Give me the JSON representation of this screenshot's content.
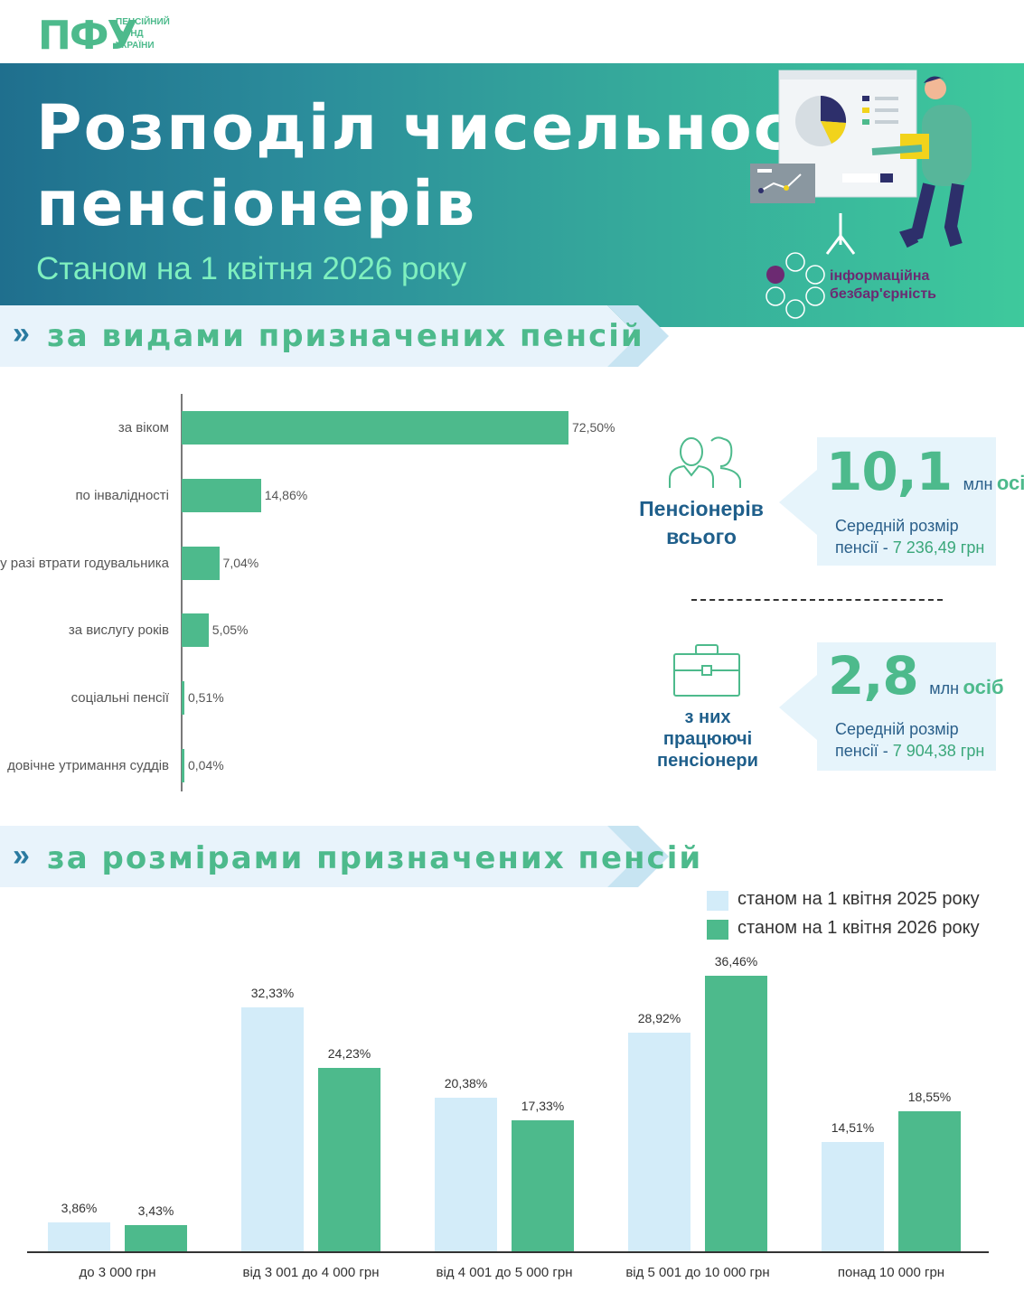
{
  "logo": {
    "mark": "ПФУ",
    "line1": "ПЕНСІЙНИЙ",
    "line2": "ФОНД",
    "line3": "УКРАЇНИ"
  },
  "hero": {
    "title_line1": "Розподіл чисельності",
    "title_line2": "пенсіонерів",
    "subtitle": "Станом на 1 квітня 2026 року",
    "badge_line1": "інформаційна",
    "badge_line2": "безбар'єрність"
  },
  "sections": {
    "by_type": "за видами призначених пенсій",
    "by_size": "за розмірами призначених пенсій"
  },
  "stats": {
    "total": {
      "label_line1": "Пенсіонерів",
      "label_line2": "всього",
      "number": "10,1",
      "unit_mln": "млн",
      "unit_persons": "осіб",
      "desc_line1": "Середній розмір",
      "desc_prefix": "пенсії - ",
      "desc_amount": "7 236,49 грн"
    },
    "working": {
      "label_line1": "з них",
      "label_line2": "працюючі",
      "label_line3": "пенсіонери",
      "number": "2,8",
      "unit_mln": "млн",
      "unit_persons": "осіб",
      "desc_line1": "Середній розмір",
      "desc_prefix": "пенсії - ",
      "desc_amount": "7 904,38 грн"
    }
  },
  "chart_data": [
    {
      "type": "bar",
      "orientation": "horizontal",
      "title": "за видами призначених пенсій",
      "categories": [
        "за віком",
        "по інвалідності",
        "у разі втрати годувальника",
        "за вислугу років",
        "соціальні пенсії",
        "довічне утримання суддів"
      ],
      "values": [
        72.5,
        14.86,
        7.04,
        5.05,
        0.51,
        0.04
      ],
      "value_labels": [
        "72,50%",
        "14,86%",
        "7,04%",
        "5,05%",
        "0,51%",
        "0,04%"
      ],
      "xlim": [
        0,
        100
      ],
      "grid": false,
      "color": "#4dba8c"
    },
    {
      "type": "bar",
      "title": "за розмірами призначених пенсій",
      "categories": [
        "до 3 000 грн",
        "від 3 001 до 4 000 грн",
        "від 4 001 до 5 000 грн",
        "від 5 001 до 10 000 грн",
        "понад 10 000 грн"
      ],
      "series": [
        {
          "name": "станом на 1 квітня 2025 року",
          "color": "#d3ecf9",
          "values": [
            3.86,
            32.33,
            20.38,
            28.92,
            14.51
          ],
          "value_labels": [
            "3,86%",
            "32,33%",
            "20,38%",
            "28,92%",
            "14,51%"
          ]
        },
        {
          "name": "станом на 1 квітня 2026 року",
          "color": "#4dba8c",
          "values": [
            3.43,
            24.23,
            17.33,
            36.46,
            18.55
          ],
          "value_labels": [
            "3,43%",
            "24,23%",
            "17,33%",
            "36,46%",
            "18,55%"
          ]
        }
      ],
      "ylim": [
        0,
        40
      ],
      "grid": false,
      "legend": "top-right"
    }
  ]
}
